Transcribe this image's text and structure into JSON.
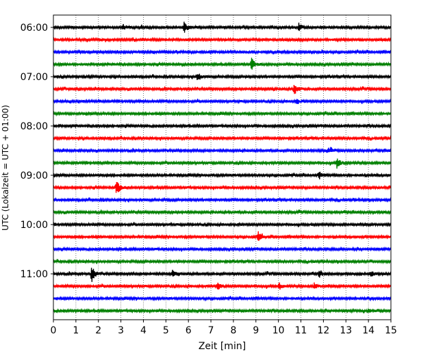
{
  "chart_data": {
    "type": "line",
    "title": "",
    "xlabel": "Zeit  [min]",
    "ylabel": "UTC (Lokalzeit = UTC + 01:00)",
    "xlim": [
      0,
      15
    ],
    "x_ticks": [
      "0",
      "1",
      "2",
      "3",
      "4",
      "5",
      "6",
      "7",
      "8",
      "9",
      "10",
      "11",
      "12",
      "13",
      "14",
      "15"
    ],
    "y_tick_labels": [
      "06:00",
      "07:00",
      "08:00",
      "09:00",
      "10:00",
      "11:00"
    ],
    "grid": "vertical dotted",
    "trace_colors": [
      "#000000",
      "#ff0000",
      "#0000ff",
      "#008000"
    ],
    "trace_start_times": [
      "06:00",
      "06:15",
      "06:30",
      "06:45",
      "07:00",
      "07:15",
      "07:30",
      "07:45",
      "08:00",
      "08:15",
      "08:30",
      "08:45",
      "09:00",
      "09:15",
      "09:30",
      "09:45",
      "10:00",
      "10:15",
      "10:30",
      "10:45",
      "11:00",
      "11:15",
      "11:30",
      "11:45"
    ],
    "events": [
      {
        "trace": 0,
        "t": 5.8,
        "amp": 0.45
      },
      {
        "trace": 0,
        "t": 10.9,
        "amp": 0.35
      },
      {
        "trace": 0,
        "t": 3.1,
        "amp": 0.2
      },
      {
        "trace": 3,
        "t": 8.8,
        "amp": 0.5
      },
      {
        "trace": 4,
        "t": 6.4,
        "amp": 0.4
      },
      {
        "trace": 5,
        "t": 10.7,
        "amp": 0.55
      },
      {
        "trace": 6,
        "t": 10.8,
        "amp": 0.25
      },
      {
        "trace": 10,
        "t": 12.2,
        "amp": 0.25
      },
      {
        "trace": 11,
        "t": 12.6,
        "amp": 0.45
      },
      {
        "trace": 12,
        "t": 11.8,
        "amp": 0.3
      },
      {
        "trace": 13,
        "t": 2.8,
        "amp": 0.7
      },
      {
        "trace": 17,
        "t": 9.1,
        "amp": 0.4
      },
      {
        "trace": 20,
        "t": 1.7,
        "amp": 0.8
      },
      {
        "trace": 20,
        "t": 5.3,
        "amp": 0.3
      },
      {
        "trace": 20,
        "t": 11.8,
        "amp": 0.3
      },
      {
        "trace": 20,
        "t": 14.1,
        "amp": 0.25
      },
      {
        "trace": 21,
        "t": 7.3,
        "amp": 0.35
      },
      {
        "trace": 21,
        "t": 10.0,
        "amp": 0.35
      },
      {
        "trace": 21,
        "t": 11.6,
        "amp": 0.3
      },
      {
        "trace": 23,
        "t": 14.0,
        "amp": 0.2
      }
    ]
  }
}
